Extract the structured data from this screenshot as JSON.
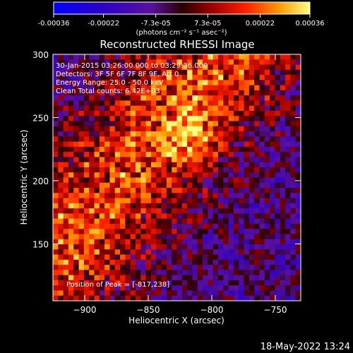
{
  "colorbar": {
    "tick_labels": [
      "-0.00036",
      "-0.00022",
      "-7.3e-05",
      "7.3e-05",
      "0.00022",
      "0.00036"
    ],
    "tick_values": [
      -0.00036,
      -0.00022,
      -7.3e-05,
      7.3e-05,
      0.00022,
      0.00036
    ],
    "range": [
      -0.00036,
      0.00036
    ],
    "unit_label": "(photons cm⁻² s⁻¹ asec⁻²)"
  },
  "chart_data": {
    "type": "heatmap",
    "title": "Reconstructed RHESSI Image",
    "xlabel": "Heliocentric X (arcsec)",
    "ylabel": "Heliocentric Y (arcsec)",
    "xlim": [
      -925,
      -730
    ],
    "ylim": [
      105,
      300
    ],
    "x_ticks": [
      -900,
      -850,
      -800,
      -750
    ],
    "x_tick_labels": [
      "−900",
      "−850",
      "−800",
      "−750"
    ],
    "y_ticks": [
      150,
      200,
      250,
      300
    ],
    "y_tick_labels": [
      "150",
      "200",
      "250",
      "300"
    ],
    "grid": false,
    "annotations": [
      "30-Jan-2015 03:26:00.000 to 03:29:36.000",
      "Detectors: 3F 5F 6F 7F 8F 9F, Att 0",
      "Energy Range: 25.0 - 50.0 keV",
      "Clean    Total counts: 6.42E+03"
    ],
    "peak_label": "Position of Peak = [-817,238]",
    "peak": {
      "x": -817,
      "y": 238
    },
    "image_cells": [
      48,
      48
    ],
    "band": {
      "x0": -895,
      "y0": 175,
      "x1": -820,
      "y1": 265,
      "width": 38
    }
  },
  "footer": {
    "timestamp": "18-May-2022 13:24"
  }
}
